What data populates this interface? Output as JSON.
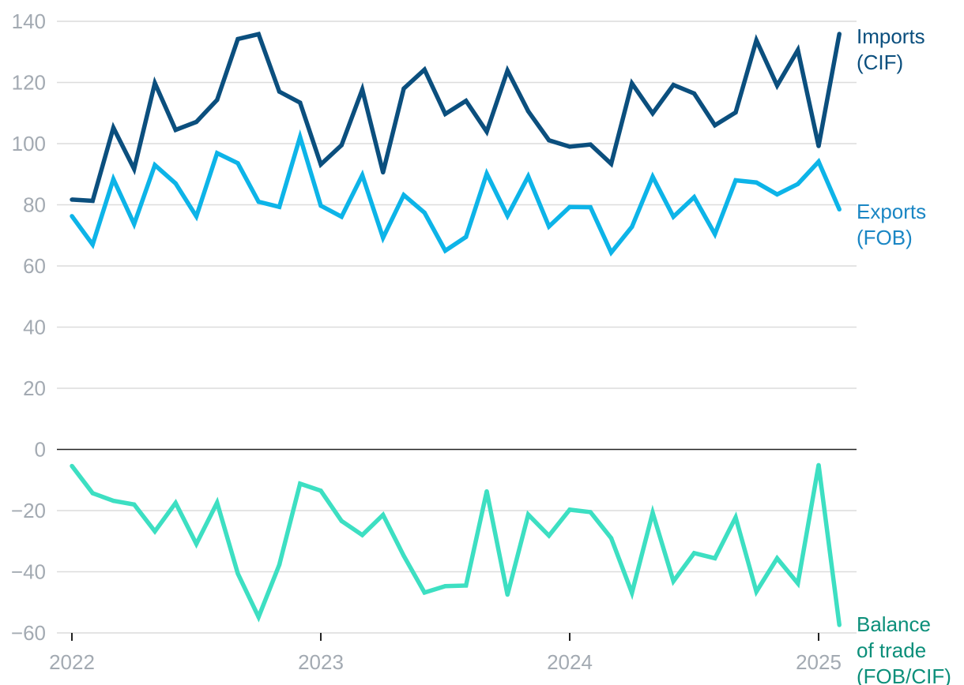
{
  "chart_data": {
    "type": "line",
    "x_start": "2022-01",
    "x_end": "2025-02",
    "x_ticks": [
      "2022",
      "2023",
      "2024",
      "2025"
    ],
    "y_ticks": [
      "140",
      "120",
      "100",
      "80",
      "60",
      "40",
      "20",
      "0",
      "−20",
      "−40",
      "−60"
    ],
    "ylim": [
      -60,
      140
    ],
    "grid": true,
    "legend": "direct labels at line ends (right)",
    "series": [
      {
        "name": "Imports (CIF)",
        "label_lines": [
          "Imports",
          "(CIF)"
        ],
        "color": "#0b4f7e",
        "label_color": "#0b4f7e",
        "values": [
          81.7,
          81.3,
          105.2,
          91.7,
          119.8,
          104.5,
          107.1,
          114.3,
          134.2,
          135.8,
          117.0,
          113.4,
          93.2,
          99.5,
          117.7,
          90.6,
          118.0,
          124.2,
          109.7,
          114.0,
          103.9,
          123.9,
          110.6,
          101.1,
          99.0,
          99.7,
          93.4,
          119.7,
          109.9,
          119.2,
          116.4,
          106.0,
          110.2,
          133.8,
          119.0,
          130.6,
          99.2,
          135.9
        ]
      },
      {
        "name": "Exports (FOB)",
        "label_lines": [
          "Exports",
          "(FOB)"
        ],
        "color": "#0db4e8",
        "label_color": "#1a86c4",
        "values": [
          76.3,
          67.0,
          88.4,
          73.7,
          93.0,
          87.0,
          76.2,
          96.9,
          93.6,
          81.0,
          79.3,
          102.2,
          79.7,
          76.1,
          89.7,
          69.2,
          83.2,
          77.4,
          65.0,
          69.5,
          90.2,
          76.4,
          89.3,
          72.9,
          79.3,
          79.2,
          64.4,
          72.8,
          89.2,
          76.1,
          82.5,
          70.4,
          88.0,
          87.3,
          83.4,
          86.8,
          94.1,
          78.5
        ]
      },
      {
        "name": "Balance of trade (FOB/CIF)",
        "label_lines": [
          "Balance",
          "of trade",
          "(FOB/CIF)"
        ],
        "color": "#3ddfc2",
        "label_color": "#0c8f7a",
        "values": [
          -5.4,
          -14.3,
          -16.8,
          -18.0,
          -26.8,
          -17.5,
          -30.9,
          -17.4,
          -40.6,
          -54.8,
          -37.7,
          -11.2,
          -13.5,
          -23.4,
          -28.0,
          -21.4,
          -34.8,
          -46.8,
          -44.7,
          -44.5,
          -13.7,
          -47.5,
          -21.3,
          -28.2,
          -19.7,
          -20.5,
          -29.0,
          -46.9,
          -20.7,
          -43.1,
          -33.9,
          -35.6,
          -22.2,
          -46.5,
          -35.6,
          -43.8,
          -5.1,
          -57.4
        ]
      }
    ]
  }
}
